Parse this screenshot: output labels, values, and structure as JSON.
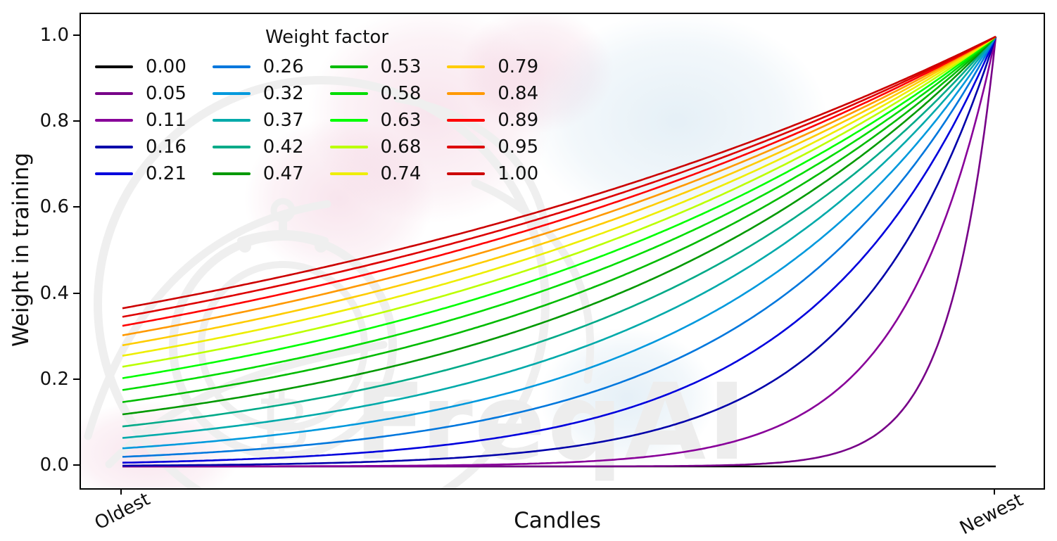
{
  "figure": {
    "background": "#ffffff",
    "watermark": {
      "text": "FreqAI",
      "bitcoin_glyph": "₿",
      "text_color": "#ededed",
      "line_color": "#efefef",
      "pink_blob_color": "#e8a7c3",
      "blue_blob_color": "#bfd9ea"
    }
  },
  "chart_data": {
    "type": "line",
    "title": "",
    "xlabel": "Candles",
    "ylabel": "Weight in training",
    "x_tick_labels": [
      "Oldest",
      "Newest"
    ],
    "y_tick_labels": [
      "0.0",
      "0.2",
      "0.4",
      "0.6",
      "0.8",
      "1.0"
    ],
    "y_ticks": [
      0.0,
      0.2,
      0.4,
      0.6,
      0.8,
      1.0
    ],
    "x_range": [
      0,
      1
    ],
    "y_range": [
      0,
      1
    ],
    "grid": false,
    "legend": {
      "title": "Weight factor",
      "position": "upper left",
      "columns": 4,
      "rows": 5,
      "frame": false
    },
    "formula": "weight(x) = exp((x - 1) / weight_factor) for x in [0,1] from Oldest to Newest; weight(x) = 0 everywhere when weight_factor = 0",
    "series": [
      {
        "label": "0.00",
        "weight_factor": 0.0,
        "color": "#000000",
        "weight_at_oldest": 0.0
      },
      {
        "label": "0.05",
        "weight_factor": 0.05263,
        "color": "#770088",
        "weight_at_oldest": 0.0
      },
      {
        "label": "0.11",
        "weight_factor": 0.10526,
        "color": "#880099",
        "weight_at_oldest": 0.0001
      },
      {
        "label": "0.16",
        "weight_factor": 0.15789,
        "color": "#0000AA",
        "weight_at_oldest": 0.0018
      },
      {
        "label": "0.21",
        "weight_factor": 0.21053,
        "color": "#0000DD",
        "weight_at_oldest": 0.0087
      },
      {
        "label": "0.26",
        "weight_factor": 0.26316,
        "color": "#0077DD",
        "weight_at_oldest": 0.0224
      },
      {
        "label": "0.32",
        "weight_factor": 0.31579,
        "color": "#0099DD",
        "weight_at_oldest": 0.0421
      },
      {
        "label": "0.37",
        "weight_factor": 0.36842,
        "color": "#00AAAA",
        "weight_at_oldest": 0.0663
      },
      {
        "label": "0.42",
        "weight_factor": 0.42105,
        "color": "#00AA88",
        "weight_at_oldest": 0.093
      },
      {
        "label": "0.47",
        "weight_factor": 0.47368,
        "color": "#009900",
        "weight_at_oldest": 0.1211
      },
      {
        "label": "0.53",
        "weight_factor": 0.52632,
        "color": "#00BB00",
        "weight_at_oldest": 0.1496
      },
      {
        "label": "0.58",
        "weight_factor": 0.57895,
        "color": "#00DD00",
        "weight_at_oldest": 0.1778
      },
      {
        "label": "0.63",
        "weight_factor": 0.63158,
        "color": "#00FF00",
        "weight_at_oldest": 0.2053
      },
      {
        "label": "0.68",
        "weight_factor": 0.68421,
        "color": "#BBFF00",
        "weight_at_oldest": 0.2318
      },
      {
        "label": "0.74",
        "weight_factor": 0.73684,
        "color": "#EEEE00",
        "weight_at_oldest": 0.2572
      },
      {
        "label": "0.79",
        "weight_factor": 0.78947,
        "color": "#FFCC00",
        "weight_at_oldest": 0.2818
      },
      {
        "label": "0.84",
        "weight_factor": 0.84211,
        "color": "#FF9900",
        "weight_at_oldest": 0.3049
      },
      {
        "label": "0.89",
        "weight_factor": 0.89474,
        "color": "#FF0000",
        "weight_at_oldest": 0.327
      },
      {
        "label": "0.95",
        "weight_factor": 0.94737,
        "color": "#DD0000",
        "weight_at_oldest": 0.3482
      },
      {
        "label": "1.00",
        "weight_factor": 1.0,
        "color": "#CC0000",
        "weight_at_oldest": 0.3679
      }
    ]
  }
}
